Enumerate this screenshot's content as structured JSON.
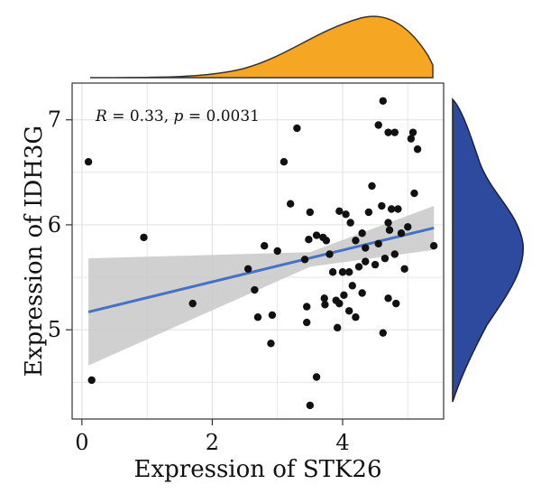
{
  "chart_data": {
    "type": "scatter",
    "xlabel": "Expression of STK26",
    "ylabel": "Expression of IDH3G",
    "xlim": [
      -0.15,
      5.55
    ],
    "ylim": [
      4.15,
      7.35
    ],
    "xticks": [
      0,
      2,
      4
    ],
    "yticks": [
      5,
      6,
      7
    ],
    "xtick_labels": [
      "0",
      "2",
      "4"
    ],
    "ytick_labels": [
      "5",
      "6",
      "7"
    ],
    "grid": true,
    "annotation": {
      "r_label": "R",
      "r_text": " = 0.33, ",
      "p_label": "p",
      "p_text": " = 0.0031",
      "position": "top-left"
    },
    "regression": {
      "x": [
        0.1,
        5.4
      ],
      "y": [
        5.17,
        5.97
      ],
      "color": "#4472C4",
      "band_color": "#C8C8C8",
      "band_upper": [
        [
          0.1,
          5.68
        ],
        [
          3.5,
          5.74
        ],
        [
          5.4,
          6.18
        ]
      ],
      "band_lower": [
        [
          5.4,
          5.76
        ],
        [
          3.5,
          5.6
        ],
        [
          0.1,
          4.66
        ]
      ]
    },
    "points": [
      [
        0.1,
        6.6
      ],
      [
        0.15,
        4.52
      ],
      [
        0.95,
        5.88
      ],
      [
        1.7,
        5.25
      ],
      [
        2.55,
        5.58
      ],
      [
        2.65,
        5.38
      ],
      [
        2.7,
        5.12
      ],
      [
        2.8,
        5.8
      ],
      [
        2.9,
        4.87
      ],
      [
        2.92,
        5.14
      ],
      [
        3.0,
        5.75
      ],
      [
        3.1,
        6.6
      ],
      [
        3.2,
        6.2
      ],
      [
        3.3,
        6.92
      ],
      [
        3.42,
        5.67
      ],
      [
        3.45,
        5.22
      ],
      [
        3.45,
        5.07
      ],
      [
        3.48,
        5.86
      ],
      [
        3.5,
        6.12
      ],
      [
        3.5,
        4.28
      ],
      [
        3.6,
        4.55
      ],
      [
        3.6,
        5.9
      ],
      [
        3.7,
        5.88
      ],
      [
        3.72,
        5.3
      ],
      [
        3.73,
        5.24
      ],
      [
        3.75,
        5.85
      ],
      [
        3.8,
        5.72
      ],
      [
        3.85,
        5.55
      ],
      [
        3.9,
        5.28
      ],
      [
        3.92,
        5.02
      ],
      [
        3.95,
        6.13
      ],
      [
        3.95,
        5.25
      ],
      [
        4.0,
        5.55
      ],
      [
        4.02,
        5.33
      ],
      [
        4.05,
        6.1
      ],
      [
        4.1,
        5.55
      ],
      [
        4.1,
        5.18
      ],
      [
        4.12,
        6.02
      ],
      [
        4.15,
        5.42
      ],
      [
        4.2,
        5.12
      ],
      [
        4.2,
        5.85
      ],
      [
        4.25,
        5.6
      ],
      [
        4.3,
        5.92
      ],
      [
        4.3,
        5.35
      ],
      [
        4.35,
        5.78
      ],
      [
        4.35,
        5.65
      ],
      [
        4.4,
        6.12
      ],
      [
        4.45,
        6.37
      ],
      [
        4.5,
        5.62
      ],
      [
        4.55,
        6.95
      ],
      [
        4.55,
        5.82
      ],
      [
        4.6,
        6.18
      ],
      [
        4.62,
        7.18
      ],
      [
        4.62,
        4.97
      ],
      [
        4.65,
        5.68
      ],
      [
        4.7,
        6.88
      ],
      [
        4.7,
        6.02
      ],
      [
        4.7,
        5.3
      ],
      [
        4.72,
        5.95
      ],
      [
        4.75,
        6.15
      ],
      [
        4.8,
        6.88
      ],
      [
        4.8,
        5.72
      ],
      [
        4.82,
        5.25
      ],
      [
        4.85,
        6.15
      ],
      [
        4.9,
        5.92
      ],
      [
        4.95,
        5.58
      ],
      [
        5.0,
        5.98
      ],
      [
        5.05,
        6.82
      ],
      [
        5.08,
        6.88
      ],
      [
        5.1,
        6.3
      ],
      [
        5.15,
        6.72
      ],
      [
        5.4,
        5.8
      ]
    ],
    "marginal_x_color": "#F5A623",
    "marginal_y_color": "#2E4A9E"
  }
}
